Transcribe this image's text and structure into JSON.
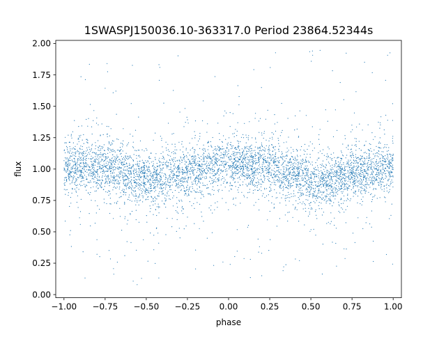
{
  "chart_data": {
    "type": "scatter",
    "title": "1SWASPJ150036.10-363317.0 Period 23864.52344s",
    "xlabel": "phase",
    "ylabel": "flux",
    "xlim": [
      -1.05,
      1.05
    ],
    "ylim": [
      -0.025,
      2.025
    ],
    "xticks": [
      -1.0,
      -0.75,
      -0.5,
      -0.25,
      0.0,
      0.25,
      0.5,
      0.75,
      1.0
    ],
    "xtick_labels": [
      "−1.00",
      "−0.75",
      "−0.50",
      "−0.25",
      "0.00",
      "0.25",
      "0.50",
      "0.75",
      "1.00"
    ],
    "yticks": [
      0.0,
      0.25,
      0.5,
      0.75,
      1.0,
      1.25,
      1.5,
      1.75,
      2.0
    ],
    "ytick_labels": [
      "0.00",
      "0.25",
      "0.50",
      "0.75",
      "1.00",
      "1.25",
      "1.50",
      "1.75",
      "2.00"
    ],
    "grid": false,
    "marker_color": "#1f77b4",
    "series": [
      {
        "x_range": [
          -1.0,
          1.0
        ],
        "core_flux_range": [
          0.75,
          1.25
        ],
        "flux_range": [
          0.05,
          1.95
        ],
        "trend": [
          {
            "phase": -1.0,
            "flux": 1.02
          },
          {
            "phase": -0.75,
            "flux": 1.02
          },
          {
            "phase": -0.45,
            "flux": 0.9
          },
          {
            "phase": -0.25,
            "flux": 0.98
          },
          {
            "phase": 0.0,
            "flux": 1.04
          },
          {
            "phase": 0.25,
            "flux": 1.02
          },
          {
            "phase": 0.55,
            "flux": 0.88
          },
          {
            "phase": 0.75,
            "flux": 0.97
          },
          {
            "phase": 1.0,
            "flux": 1.02
          }
        ]
      }
    ]
  }
}
